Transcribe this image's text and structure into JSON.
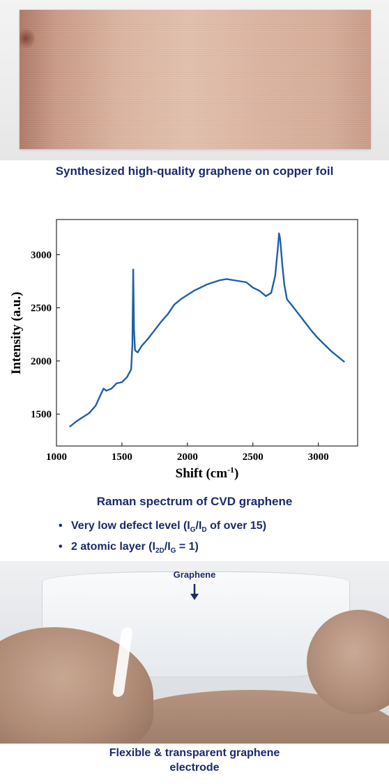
{
  "top_photo": {
    "caption": "Synthesized high-quality graphene on copper foil"
  },
  "chart_data": {
    "type": "line",
    "title": "",
    "xlabel": "Shift (cm",
    "xlabel_sup": "-1",
    "xlabel_tail": ")",
    "ylabel": "Intensity (a.u.)",
    "xlim": [
      1000,
      3300
    ],
    "ylim": [
      1200,
      3330
    ],
    "x_ticks": [
      1000,
      1500,
      2000,
      2500,
      3000
    ],
    "y_ticks": [
      1500,
      2000,
      2500,
      3000
    ],
    "line_color": "#1f5fa8",
    "series": [
      {
        "x": [
          1100,
          1150,
          1200,
          1250,
          1300,
          1340,
          1360,
          1380,
          1420,
          1460,
          1500,
          1540,
          1570,
          1580,
          1586,
          1592,
          1600,
          1620,
          1650,
          1700,
          1750,
          1800,
          1850,
          1900,
          1950,
          2000,
          2050,
          2100,
          2150,
          2200,
          2250,
          2300,
          2350,
          2400,
          2450,
          2500,
          2550,
          2600,
          2640,
          2670,
          2690,
          2700,
          2708,
          2715,
          2725,
          2740,
          2760,
          2780,
          2800,
          2850,
          2900,
          2950,
          3000,
          3050,
          3100,
          3150,
          3200
        ],
        "y": [
          1380,
          1430,
          1470,
          1510,
          1580,
          1690,
          1740,
          1720,
          1740,
          1790,
          1800,
          1850,
          1920,
          2150,
          2860,
          2300,
          2100,
          2080,
          2140,
          2210,
          2290,
          2370,
          2440,
          2530,
          2580,
          2620,
          2660,
          2690,
          2720,
          2740,
          2760,
          2770,
          2760,
          2750,
          2740,
          2690,
          2660,
          2610,
          2640,
          2800,
          3050,
          3200,
          3150,
          3050,
          2900,
          2720,
          2580,
          2550,
          2520,
          2440,
          2360,
          2280,
          2210,
          2150,
          2090,
          2040,
          1990
        ]
      }
    ]
  },
  "raman": {
    "caption": "Raman spectrum of CVD graphene",
    "bullet1": {
      "pre": "Very low defect level (I",
      "s1": "G",
      "mid": "/I",
      "s2": "D",
      "post": " of over 15)"
    },
    "bullet2": {
      "pre": "2 atomic layer (I",
      "s1": "2D",
      "mid": "/I",
      "s2": "G",
      "post": " = 1)"
    }
  },
  "bottom_photo": {
    "label": "Graphene",
    "caption_line1": "Flexible & transparent graphene",
    "caption_line2": "electrode"
  }
}
